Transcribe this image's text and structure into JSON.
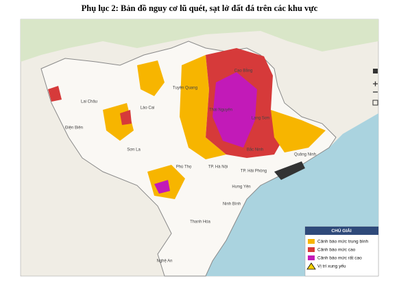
{
  "title": "Phụ lục 2: Bản đồ nguy cơ lũ quét, sạt lở đất đá trên các khu vực",
  "places": [
    "Cao Bằng",
    "Tuyên Quang",
    "Lai Châu",
    "Lào Cai",
    "Thái Nguyên",
    "Lạng Sơn",
    "Điện Biên",
    "Sơn La",
    "Bắc Ninh",
    "Quảng Ninh",
    "Phú Thọ",
    "TP. Hà Nội",
    "TP. Hải Phòng",
    "Hưng Yên",
    "Ninh Bình",
    "Thanh Hóa",
    "Nghệ An"
  ],
  "legend": {
    "title": "CHÚ GIẢI",
    "items": [
      "Cảnh báo mức trung bình",
      "Cảnh báo mức cao",
      "Cảnh báo mức rất cao",
      "Vị trí xung yếu"
    ]
  }
}
